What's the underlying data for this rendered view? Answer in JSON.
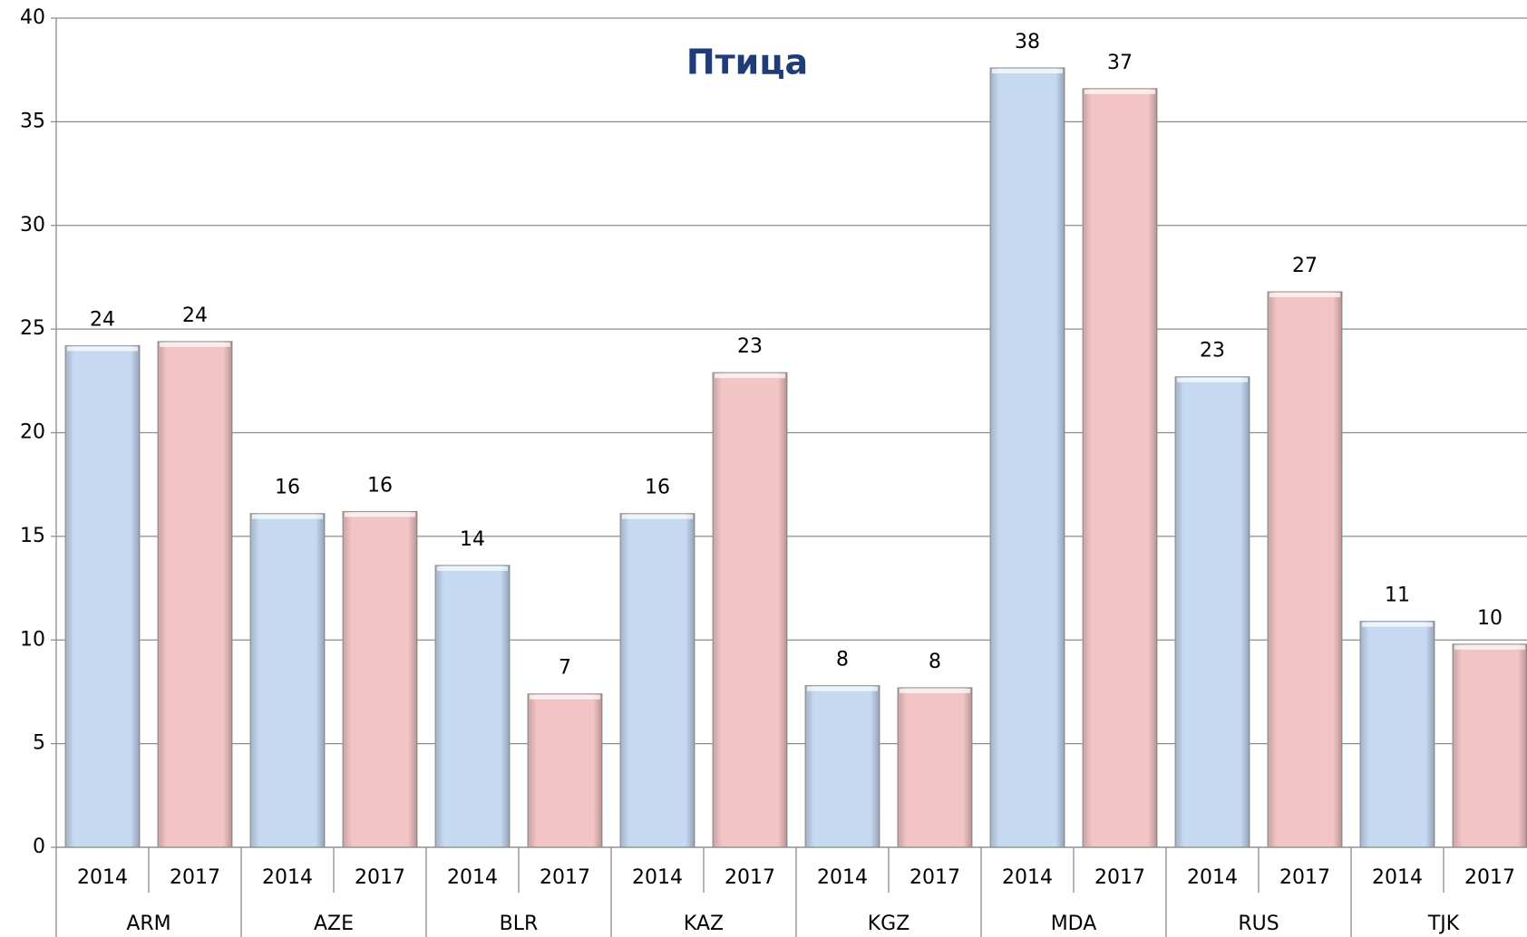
{
  "chart_data": {
    "type": "bar",
    "title": "Птица",
    "categories": [
      "ARM",
      "AZE",
      "BLR",
      "KAZ",
      "KGZ",
      "MDA",
      "RUS",
      "TJK"
    ],
    "series": [
      {
        "name": "2014",
        "color": "#c5d9f1",
        "values": [
          24.2,
          16.1,
          13.6,
          16.1,
          7.8,
          37.6,
          22.7,
          10.9
        ],
        "value_labels": [
          "24",
          "16",
          "14",
          "16",
          "8",
          "38",
          "23",
          "11"
        ]
      },
      {
        "name": "2017",
        "color": "#f2c4c4",
        "values": [
          24.4,
          16.2,
          7.4,
          22.9,
          7.7,
          36.6,
          26.8,
          9.8
        ],
        "value_labels": [
          "24",
          "16",
          "7",
          "23",
          "8",
          "37",
          "27",
          "10"
        ]
      }
    ],
    "ylim": [
      0,
      40
    ],
    "yticks": [
      0,
      5,
      10,
      15,
      20,
      25,
      30,
      35,
      40
    ],
    "grid": true
  }
}
